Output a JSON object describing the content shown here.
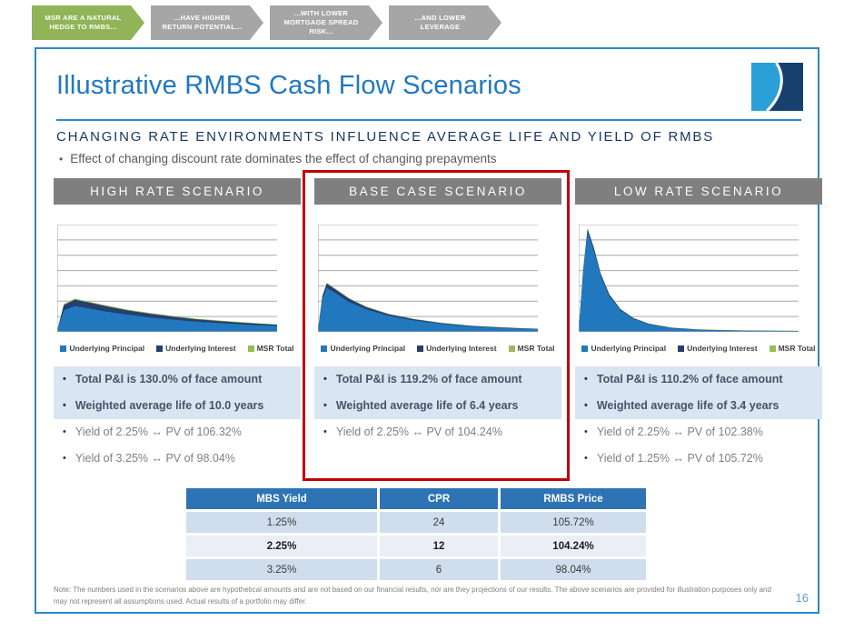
{
  "banner": {
    "items": [
      {
        "label": "MSR ARE A NATURAL HEDGE TO RMBS...",
        "color": "#90B457",
        "active": true
      },
      {
        "label": "...HAVE HIGHER RETURN POTENTIAL...",
        "color": "#A6A6A6",
        "active": false
      },
      {
        "label": "...WITH LOWER MORTGAGE SPREAD RISK...",
        "color": "#A6A6A6",
        "active": false
      },
      {
        "label": "...AND LOWER LEVERAGE",
        "color": "#A6A6A6",
        "active": false
      }
    ]
  },
  "header": {
    "title": "Illustrative RMBS Cash Flow Scenarios",
    "subtitle": "CHANGING RATE ENVIRONMENTS INFLUENCE AVERAGE LIFE AND YIELD OF RMBS",
    "lead_bullet": "Effect of changing discount rate dominates the effect of changing prepayments"
  },
  "legend": [
    {
      "label": "Underlying Principal",
      "color": "#2178BE"
    },
    {
      "label": "Underlying Interest",
      "color": "#263F6E"
    },
    {
      "label": "MSR Total",
      "color": "#9BBB59"
    }
  ],
  "scenarios": [
    {
      "header": "HIGH RATE SCENARIO",
      "highlight_bullets": [
        "Total P&I is 130.0% of face amount",
        "Weighted average life of 10.0 years"
      ],
      "plain_bullets": [
        "Yield of 2.25% ↔ PV of 106.32%",
        "Yield of 3.25% ↔ PV of 98.04%"
      ]
    },
    {
      "header": "BASE CASE SCENARIO",
      "highlight_bullets": [
        "Total P&I is 119.2% of face amount",
        "Weighted average life of 6.4 years"
      ],
      "plain_bullets": [
        "Yield of 2.25% ↔ PV of 104.24%"
      ]
    },
    {
      "header": "LOW RATE SCENARIO",
      "highlight_bullets": [
        "Total P&I is 110.2% of face amount",
        "Weighted average life of 3.4 years"
      ],
      "plain_bullets": [
        "Yield of 2.25% ↔  PV of 102.38%",
        "Yield of 1.25% ↔  PV of 105.72%"
      ]
    }
  ],
  "chart_data": [
    {
      "type": "area",
      "title": "HIGH RATE SCENARIO cash flows",
      "note": "stacked area; each series lists [x, cumulative stacked top boundary] as percent of plot height; x is percent of time axis",
      "xlabel": "",
      "ylabel": "",
      "x_range": [
        0,
        100
      ],
      "y_range": [
        0,
        100
      ],
      "gridlines": 8,
      "grid": "horizontal",
      "legend_position": "bottom",
      "series": [
        {
          "name": "MSR Total",
          "color": "#9BBB59",
          "points": [
            [
              0,
              1.5
            ],
            [
              3,
              26
            ],
            [
              8,
              31
            ],
            [
              14,
              28.4
            ],
            [
              22,
              24.8
            ],
            [
              32,
              20.8
            ],
            [
              42,
              17.7
            ],
            [
              52,
              15
            ],
            [
              63,
              12.4
            ],
            [
              75,
              10.4
            ],
            [
              88,
              8.5
            ],
            [
              100,
              7
            ]
          ]
        },
        {
          "name": "Underlying Interest (stacked on principal)",
          "color": "#263F6E",
          "points": [
            [
              0,
              1.2
            ],
            [
              3,
              25
            ],
            [
              8,
              30
            ],
            [
              14,
              27.5
            ],
            [
              22,
              24
            ],
            [
              32,
              20
            ],
            [
              42,
              17
            ],
            [
              52,
              14.3
            ],
            [
              63,
              11.8
            ],
            [
              75,
              9.8
            ],
            [
              88,
              8
            ],
            [
              100,
              6.6
            ]
          ]
        },
        {
          "name": "Underlying Principal",
          "color": "#2178BE",
          "points": [
            [
              0,
              1
            ],
            [
              3,
              20
            ],
            [
              8,
              24
            ],
            [
              14,
              22
            ],
            [
              22,
              19
            ],
            [
              32,
              16
            ],
            [
              42,
              13.5
            ],
            [
              52,
              11.5
            ],
            [
              63,
              9.5
            ],
            [
              75,
              8
            ],
            [
              88,
              6.5
            ],
            [
              100,
              5.5
            ]
          ]
        }
      ]
    },
    {
      "type": "area",
      "title": "BASE CASE SCENARIO cash flows",
      "note": "stacked area; each series lists [x, cumulative stacked top boundary] as percent of plot height; x is percent of time axis",
      "xlabel": "",
      "ylabel": "",
      "x_range": [
        0,
        100
      ],
      "y_range": [
        0,
        100
      ],
      "gridlines": 8,
      "grid": "horizontal",
      "legend_position": "bottom",
      "series": [
        {
          "name": "MSR Total",
          "color": "#9BBB59",
          "points": [
            [
              0,
              1.6
            ],
            [
              2,
              33.8
            ],
            [
              4,
              45.8
            ],
            [
              8,
              40.2
            ],
            [
              14,
              31.7
            ],
            [
              22,
              23.6
            ],
            [
              32,
              17
            ],
            [
              44,
              12
            ],
            [
              56,
              8.6
            ],
            [
              70,
              5.8
            ],
            [
              85,
              4.2
            ],
            [
              100,
              3
            ]
          ]
        },
        {
          "name": "Underlying Interest (stacked on principal)",
          "color": "#263F6E",
          "points": [
            [
              0,
              1.2
            ],
            [
              2,
              33
            ],
            [
              4,
              45
            ],
            [
              8,
              39.5
            ],
            [
              14,
              31
            ],
            [
              22,
              23
            ],
            [
              32,
              16.5
            ],
            [
              44,
              11.6
            ],
            [
              56,
              8.2
            ],
            [
              70,
              5.5
            ],
            [
              85,
              3.9
            ],
            [
              100,
              2.8
            ]
          ]
        },
        {
          "name": "Underlying Principal",
          "color": "#2178BE",
          "points": [
            [
              0,
              1
            ],
            [
              2,
              30
            ],
            [
              4,
              41
            ],
            [
              8,
              36
            ],
            [
              14,
              28
            ],
            [
              22,
              21
            ],
            [
              32,
              15
            ],
            [
              44,
              10.5
            ],
            [
              56,
              7.5
            ],
            [
              70,
              5
            ],
            [
              85,
              3.5
            ],
            [
              100,
              2.5
            ]
          ]
        }
      ]
    },
    {
      "type": "area",
      "title": "LOW RATE SCENARIO cash flows",
      "note": "stacked area; each series lists [x, cumulative stacked top boundary] as percent of plot height; x is percent of time axis",
      "xlabel": "",
      "ylabel": "",
      "x_range": [
        0,
        100
      ],
      "y_range": [
        0,
        100
      ],
      "gridlines": 8,
      "grid": "horizontal",
      "legend_position": "bottom",
      "series": [
        {
          "name": "MSR Total",
          "color": "#9BBB59",
          "points": [
            [
              0,
              1.4
            ],
            [
              2,
              57.5
            ],
            [
              4,
              96.5
            ],
            [
              7,
              78
            ],
            [
              10,
              54.4
            ],
            [
              14,
              35
            ],
            [
              19,
              21.4
            ],
            [
              25,
              13
            ],
            [
              32,
              7.7
            ],
            [
              42,
              4.1
            ],
            [
              55,
              2.3
            ],
            [
              75,
              1.4
            ],
            [
              100,
              1.1
            ]
          ]
        },
        {
          "name": "Underlying Interest (stacked on principal)",
          "color": "#263F6E",
          "points": [
            [
              0,
              1.1
            ],
            [
              2,
              57
            ],
            [
              4,
              96
            ],
            [
              7,
              77.5
            ],
            [
              10,
              54
            ],
            [
              14,
              34.5
            ],
            [
              19,
              21
            ],
            [
              25,
              12.6
            ],
            [
              32,
              7.4
            ],
            [
              42,
              3.8
            ],
            [
              55,
              2
            ],
            [
              75,
              1.2
            ],
            [
              100,
              0.9
            ]
          ]
        },
        {
          "name": "Underlying Principal",
          "color": "#2178BE",
          "points": [
            [
              0,
              1
            ],
            [
              2,
              55
            ],
            [
              4,
              93
            ],
            [
              7,
              75
            ],
            [
              10,
              52
            ],
            [
              14,
              33
            ],
            [
              19,
              20
            ],
            [
              25,
              12
            ],
            [
              32,
              7
            ],
            [
              42,
              3.5
            ],
            [
              55,
              1.8
            ],
            [
              75,
              1
            ],
            [
              100,
              0.7
            ]
          ]
        }
      ]
    }
  ],
  "table": {
    "headers": [
      "MBS Yield",
      "CPR",
      "RMBS Price"
    ],
    "rows": [
      {
        "cells": [
          "1.25%",
          "24",
          "105.72%"
        ],
        "bold": false
      },
      {
        "cells": [
          "2.25%",
          "12",
          "104.24%"
        ],
        "bold": true
      },
      {
        "cells": [
          "3.25%",
          "6",
          "98.04%"
        ],
        "bold": false
      }
    ]
  },
  "footer": {
    "note": "Note: The numbers used in the scenarios above are hypothetical amounts and are not based on our financial results, nor are they projections of our results.  The above scenarios are provided for illustration purposes only and may not represent all assumptions used. Actual results of a portfolio may differ.",
    "page_number": "16"
  },
  "colors": {
    "title_blue": "#2178BE",
    "subtitle_navy": "#17365D",
    "slide_border": "#2E86C5",
    "scenario_header_bg": "#7F7F7F",
    "highlight_bullet_bg": "#D9E5F1",
    "highlight_bullet_text": "#44546A",
    "plain_bullet_text": "#808080",
    "emphasis_box_red": "#C00000",
    "table_header_bg": "#2E74B5",
    "table_row_bg": "#CFDDEC",
    "table_row_mid_bg": "#EAEFF5",
    "page_number_blue": "#5B9BD5",
    "chevron_active_green": "#90B457",
    "chevron_inactive_gray": "#A6A6A6"
  }
}
